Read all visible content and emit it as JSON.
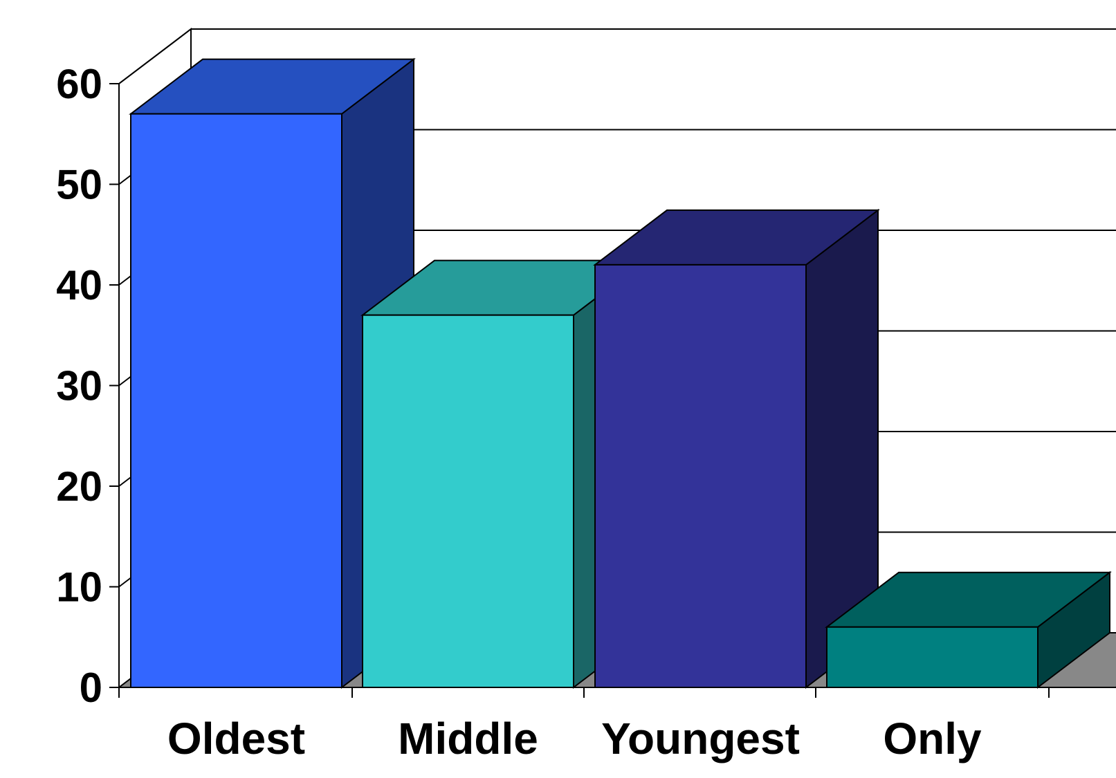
{
  "chart_data": {
    "type": "bar",
    "style": "3d-column",
    "categories": [
      "Oldest",
      "Middle",
      "Youngest",
      "Only"
    ],
    "values": [
      57,
      37,
      42,
      6
    ],
    "ylim": [
      0,
      60
    ],
    "yticks": [
      "0",
      "10",
      "20",
      "30",
      "40",
      "50",
      "60"
    ],
    "title": "",
    "xlabel": "",
    "ylabel": "",
    "grid": true,
    "legend": "none",
    "bar_colors": {
      "front": [
        "#3366ff",
        "#33cccc",
        "#333399",
        "#008080"
      ],
      "top": [
        "#2550c0",
        "#269c9a",
        "#252673",
        "#00605e"
      ],
      "side": [
        "#1a3380",
        "#1a6666",
        "#1a1a4d",
        "#004040"
      ]
    },
    "floor_color": "#888888",
    "background_color": "#ffffff"
  }
}
